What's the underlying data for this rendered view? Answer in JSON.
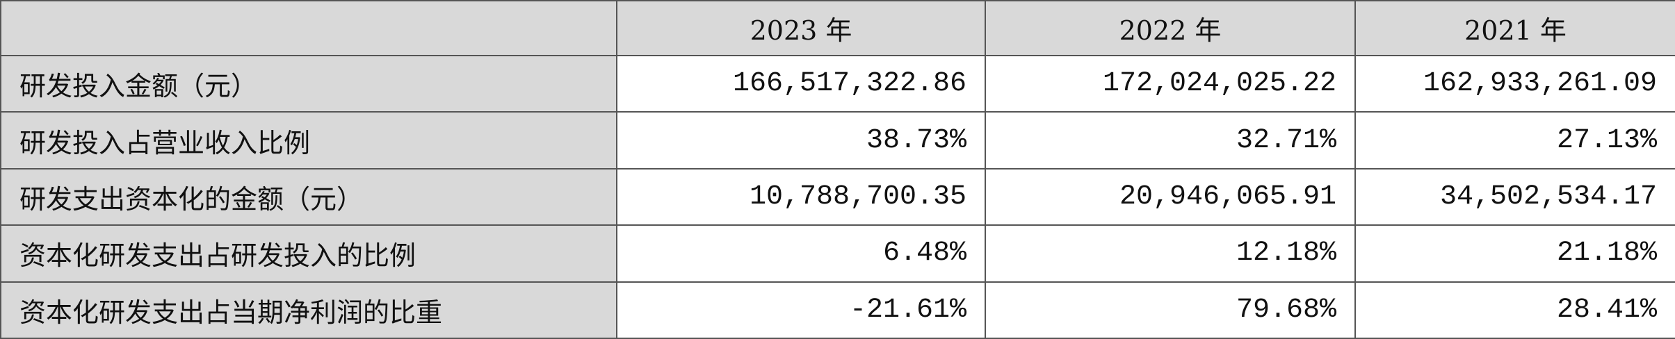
{
  "table": {
    "columns": [
      "2023 年",
      "2022 年",
      "2021 年"
    ],
    "rows": [
      [
        "研发投入金额（元）",
        "166,517,322.86",
        "172,024,025.22",
        "162,933,261.09"
      ],
      [
        "研发投入占营业收入比例",
        "38.73%",
        "32.71%",
        "27.13%"
      ],
      [
        "研发支出资本化的金额（元）",
        "10,788,700.35",
        "20,946,065.91",
        "34,502,534.17"
      ],
      [
        "资本化研发支出占研发投入的比例",
        "6.48%",
        "12.18%",
        "21.18%"
      ],
      [
        "资本化研发支出占当期净利润的比重",
        "-21.61%",
        "79.68%",
        "28.41%"
      ]
    ]
  }
}
